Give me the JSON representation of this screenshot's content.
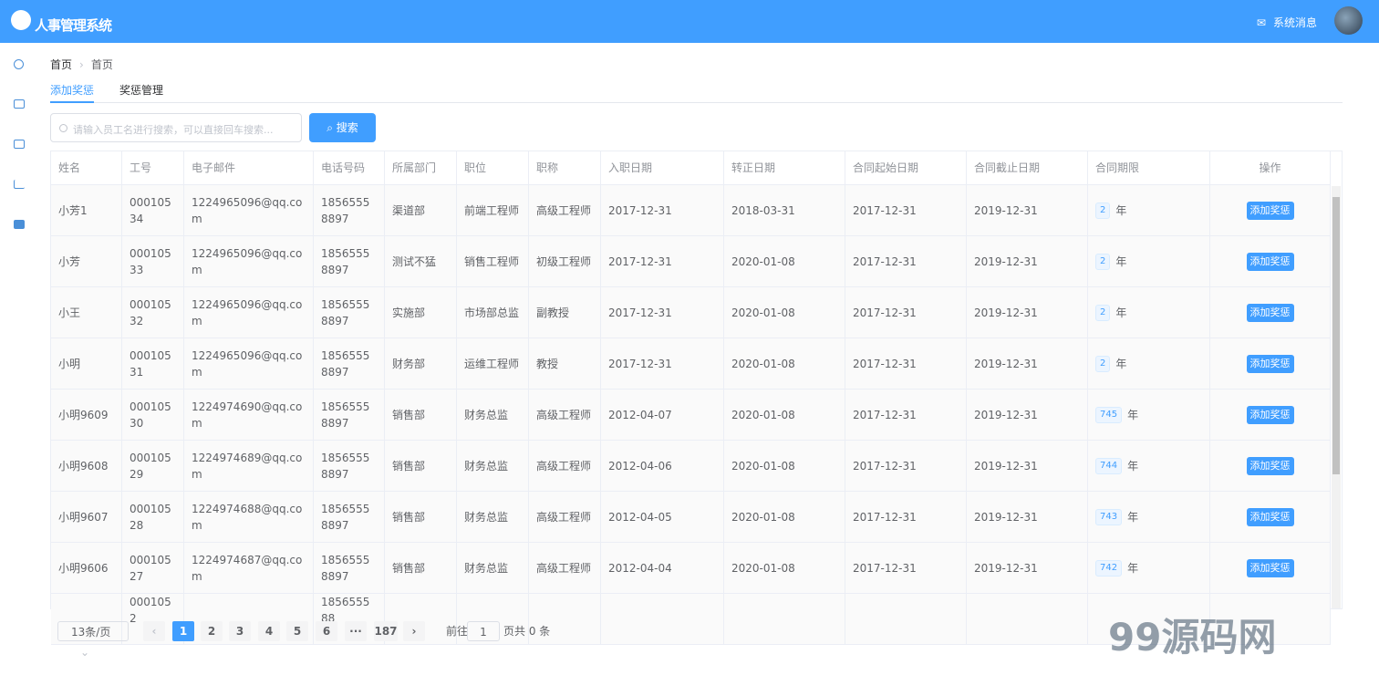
{
  "header": {
    "title": "人事管理系统",
    "message": "系统消息"
  },
  "breadcrumb": [
    "首页",
    "首页"
  ],
  "tabs": [
    "添加奖惩",
    "奖惩管理"
  ],
  "search": {
    "placeholder": "请输入员工名进行搜索，可以直接回车搜索...",
    "button": "搜索"
  },
  "table": {
    "columns": [
      "姓名",
      "工号",
      "电子邮件",
      "电话号码",
      "所属部门",
      "职位",
      "职称",
      "入职日期",
      "转正日期",
      "合同起始日期",
      "合同截止日期",
      "合同期限",
      "操作"
    ],
    "unit": "年",
    "action": "添加奖惩",
    "rows": [
      [
        "小芳1",
        "00010534",
        "1224965096@qq.com",
        "18565558897",
        "渠道部",
        "前端工程师",
        "高级工程师",
        "2017-12-31",
        "2018-03-31",
        "2017-12-31",
        "2019-12-31",
        "2"
      ],
      [
        "小芳",
        "00010533",
        "1224965096@qq.com",
        "18565558897",
        "测试不猛",
        "销售工程师",
        "初级工程师",
        "2017-12-31",
        "2020-01-08",
        "2017-12-31",
        "2019-12-31",
        "2"
      ],
      [
        "小王",
        "00010532",
        "1224965096@qq.com",
        "18565558897",
        "实施部",
        "市场部总监",
        "副教授",
        "2017-12-31",
        "2020-01-08",
        "2017-12-31",
        "2019-12-31",
        "2"
      ],
      [
        "小明",
        "00010531",
        "1224965096@qq.com",
        "18565558897",
        "财务部",
        "运维工程师",
        "教授",
        "2017-12-31",
        "2020-01-08",
        "2017-12-31",
        "2019-12-31",
        "2"
      ],
      [
        "小明9609",
        "00010530",
        "1224974690@qq.com",
        "18565558897",
        "销售部",
        "财务总监",
        "高级工程师",
        "2012-04-07",
        "2020-01-08",
        "2017-12-31",
        "2019-12-31",
        "745"
      ],
      [
        "小明9608",
        "00010529",
        "1224974689@qq.com",
        "18565558897",
        "销售部",
        "财务总监",
        "高级工程师",
        "2012-04-06",
        "2020-01-08",
        "2017-12-31",
        "2019-12-31",
        "744"
      ],
      [
        "小明9607",
        "00010528",
        "1224974688@qq.com",
        "18565558897",
        "销售部",
        "财务总监",
        "高级工程师",
        "2012-04-05",
        "2020-01-08",
        "2017-12-31",
        "2019-12-31",
        "743"
      ],
      [
        "小明9606",
        "00010527",
        "1224974687@qq.com",
        "18565558897",
        "销售部",
        "财务总监",
        "高级工程师",
        "2012-04-04",
        "2020-01-08",
        "2017-12-31",
        "2019-12-31",
        "742"
      ],
      [
        "",
        "0001052",
        "",
        "185655588",
        "",
        "",
        "",
        "",
        "",
        "",
        "",
        "",
        ""
      ]
    ]
  },
  "pagination": {
    "page_size": "13条/页",
    "pages": [
      "1",
      "2",
      "3",
      "4",
      "5",
      "6",
      "···",
      "187"
    ],
    "current": "1",
    "goto_label": "前往",
    "goto_value": "1",
    "total": "页共 0 条"
  },
  "watermark": "99源码网"
}
